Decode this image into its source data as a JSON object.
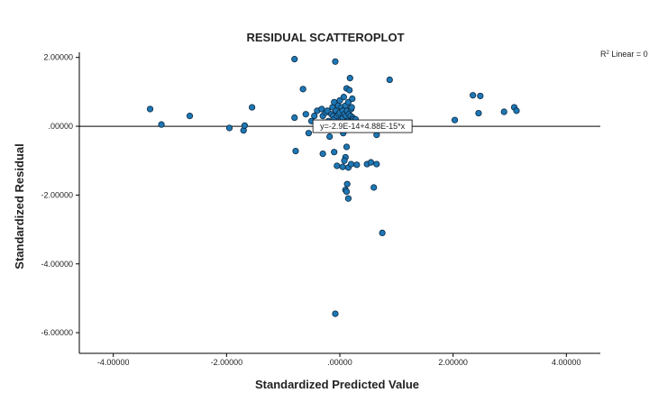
{
  "chart_data": {
    "type": "scatter",
    "title": "RESIDUAL SCATTEROPLOT",
    "xlabel": "Standardized Predicted Value",
    "ylabel": "Standardized Residual",
    "xlim": [
      -4.6,
      4.6
    ],
    "ylim": [
      -6.6,
      2.15
    ],
    "xticks": [
      -4,
      -2,
      0,
      2,
      4
    ],
    "xtick_labels": [
      "-4.00000",
      "-2.00000",
      ".00000",
      "2.00000",
      "4.00000"
    ],
    "yticks": [
      2,
      0,
      -2,
      -4,
      -6
    ],
    "ytick_labels": [
      "2.00000",
      ".00000",
      "-2.00000",
      "-4.00000",
      "-6.00000"
    ],
    "grid": false,
    "fit_line": {
      "intercept": 0,
      "slope": 0,
      "equation_label": "y=-2.9E-14+4.88E-15*x",
      "label_x": 0.4
    },
    "r2_label": {
      "prefix": "R",
      "sup": "2",
      "rest": " Linear = 0"
    },
    "marker_color": "#1f77b4",
    "points": [
      [
        -3.35,
        0.5
      ],
      [
        -3.15,
        0.05
      ],
      [
        -2.65,
        0.3
      ],
      [
        -1.95,
        -0.05
      ],
      [
        -1.7,
        -0.12
      ],
      [
        -1.68,
        0.02
      ],
      [
        -1.55,
        0.55
      ],
      [
        -0.8,
        1.95
      ],
      [
        -0.8,
        0.25
      ],
      [
        -0.78,
        -0.72
      ],
      [
        -0.65,
        1.08
      ],
      [
        -0.6,
        0.35
      ],
      [
        -0.55,
        -0.2
      ],
      [
        -0.5,
        0.15
      ],
      [
        -0.45,
        0.3
      ],
      [
        -0.4,
        0.45
      ],
      [
        -0.35,
        -0.1
      ],
      [
        -0.32,
        0.5
      ],
      [
        -0.3,
        0.3
      ],
      [
        -0.28,
        0.1
      ],
      [
        -0.25,
        0.4
      ],
      [
        -0.22,
        0.45
      ],
      [
        -0.2,
        0.15
      ],
      [
        -0.18,
        -0.3
      ],
      [
        -0.3,
        -0.8
      ],
      [
        -0.15,
        0.35
      ],
      [
        -0.13,
        0.55
      ],
      [
        -0.12,
        0.3
      ],
      [
        -0.1,
        0.7
      ],
      [
        -0.1,
        0.2
      ],
      [
        -0.08,
        1.88
      ],
      [
        -0.07,
        0.45
      ],
      [
        -0.05,
        0.3
      ],
      [
        -0.05,
        0.1
      ],
      [
        -0.03,
        0.6
      ],
      [
        -0.02,
        0.35
      ],
      [
        0.0,
        0.75
      ],
      [
        0.0,
        0.4
      ],
      [
        0.0,
        -0.05
      ],
      [
        0.02,
        0.2
      ],
      [
        0.03,
        0.55
      ],
      [
        0.05,
        0.25
      ],
      [
        0.05,
        0.45
      ],
      [
        0.06,
        -0.2
      ],
      [
        0.07,
        0.85
      ],
      [
        0.08,
        0.35
      ],
      [
        0.09,
        0.1
      ],
      [
        0.1,
        0.6
      ],
      [
        0.1,
        -0.9
      ],
      [
        0.11,
        0.3
      ],
      [
        0.12,
        1.1
      ],
      [
        0.12,
        -0.6
      ],
      [
        0.13,
        0.45
      ],
      [
        0.14,
        0.15
      ],
      [
        0.15,
        0.7
      ],
      [
        0.16,
        0.35
      ],
      [
        0.17,
        1.05
      ],
      [
        0.18,
        1.4
      ],
      [
        0.19,
        0.3
      ],
      [
        0.2,
        0.5
      ],
      [
        0.21,
        0.55
      ],
      [
        0.22,
        0.8
      ],
      [
        0.23,
        0.25
      ],
      [
        0.24,
        0.2
      ],
      [
        0.28,
        0.2
      ],
      [
        -0.1,
        -0.75
      ],
      [
        -0.05,
        -1.15
      ],
      [
        0.05,
        -1.18
      ],
      [
        0.08,
        -1.0
      ],
      [
        0.1,
        -1.85
      ],
      [
        0.12,
        -1.9
      ],
      [
        0.13,
        -1.68
      ],
      [
        0.15,
        -2.1
      ],
      [
        0.15,
        -1.2
      ],
      [
        0.2,
        -1.1
      ],
      [
        0.3,
        -1.12
      ],
      [
        0.48,
        -1.1
      ],
      [
        0.55,
        -1.05
      ],
      [
        0.6,
        -1.78
      ],
      [
        0.65,
        -1.1
      ],
      [
        0.75,
        -3.1
      ],
      [
        0.65,
        -0.25
      ],
      [
        0.88,
        1.35
      ],
      [
        -0.08,
        -5.45
      ],
      [
        2.03,
        0.18
      ],
      [
        2.35,
        0.9
      ],
      [
        2.45,
        0.38
      ],
      [
        2.48,
        0.88
      ],
      [
        2.9,
        0.42
      ],
      [
        3.08,
        0.55
      ],
      [
        3.12,
        0.45
      ]
    ]
  }
}
